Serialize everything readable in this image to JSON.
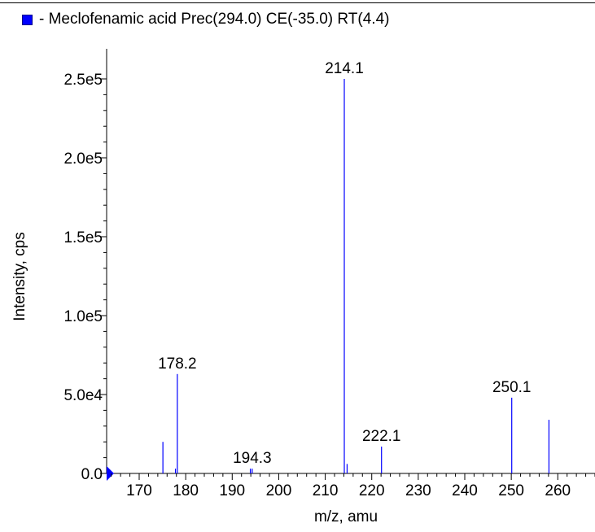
{
  "chart_data": {
    "type": "bar",
    "legend": {
      "label": "- Meclofenamic acid Prec(294.0) CE(-35.0) RT(4.4)",
      "color": "#0000ff",
      "placement": "top-left"
    },
    "xlabel": "m/z, amu",
    "ylabel": "Intensity, cps",
    "xlim": [
      163,
      268
    ],
    "ylim": [
      0,
      250000
    ],
    "x_ticks": [
      170,
      180,
      190,
      200,
      210,
      220,
      230,
      240,
      250,
      260
    ],
    "y_ticks": [
      0,
      50000,
      100000,
      150000,
      200000,
      250000
    ],
    "y_tick_labels": [
      "0.0",
      "5.0e4",
      "1.0e5",
      "1.5e5",
      "2.0e5",
      "2.5e5"
    ],
    "grid": false,
    "bar_color": "#0000ff",
    "peaks": [
      {
        "x": 175.1,
        "y": 20000
      },
      {
        "x": 177.8,
        "y": 3000
      },
      {
        "x": 178.2,
        "y": 63000,
        "label": "178.2"
      },
      {
        "x": 193.9,
        "y": 3000
      },
      {
        "x": 194.3,
        "y": 3000,
        "label": "194.3"
      },
      {
        "x": 214.1,
        "y": 250000,
        "label": "214.1"
      },
      {
        "x": 214.7,
        "y": 6000
      },
      {
        "x": 222.1,
        "y": 17000,
        "label": "222.1"
      },
      {
        "x": 250.1,
        "y": 48000,
        "label": "250.1"
      },
      {
        "x": 258.1,
        "y": 34000
      }
    ]
  }
}
